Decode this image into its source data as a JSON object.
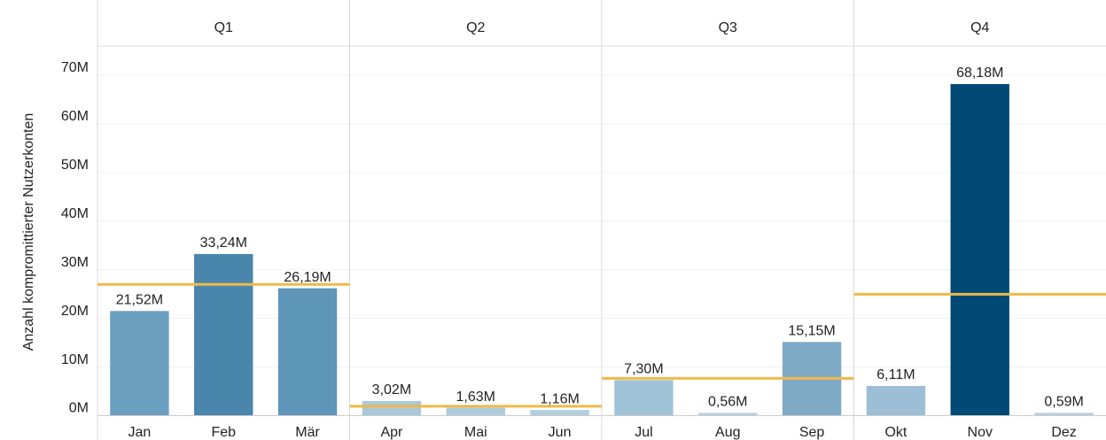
{
  "chart_data": {
    "type": "bar",
    "y_label": "Anzahl kompromittierter Nutzerkonten",
    "quarters": [
      "Q1",
      "Q2",
      "Q3",
      "Q4"
    ],
    "categories": [
      "Jan",
      "Feb",
      "Mär",
      "Apr",
      "Mai",
      "Jun",
      "Jul",
      "Aug",
      "Sep",
      "Okt",
      "Nov",
      "Dez"
    ],
    "values": [
      21.52,
      33.24,
      26.19,
      3.02,
      1.63,
      1.16,
      7.3,
      0.56,
      15.15,
      6.11,
      68.18,
      0.59
    ],
    "value_labels": [
      "21,52M",
      "33,24M",
      "26,19M",
      "3,02M",
      "1,63M",
      "1,16M",
      "7,30M",
      "0,56M",
      "15,15M",
      "6,11M",
      "68,18M",
      "0,59M"
    ],
    "colors": [
      "#6a9fc0",
      "#4a86ab",
      "#5e96b9",
      "#a9c8d9",
      "#aecbdc",
      "#b2cede",
      "#a0c2d6",
      "#b6d0df",
      "#7faac6",
      "#9cbfd5",
      "#004a75",
      "#b6d0df"
    ],
    "reference_lines": [
      26.98,
      1.94,
      7.67,
      24.96
    ],
    "reference_color": "#f0b94a",
    "ylim": [
      -1,
      76
    ],
    "yticks": [
      {
        "value": 0,
        "label": "0M"
      },
      {
        "value": 10,
        "label": "10M"
      },
      {
        "value": 20,
        "label": "20M"
      },
      {
        "value": 30,
        "label": "30M"
      },
      {
        "value": 40,
        "label": "40M"
      },
      {
        "value": 50,
        "label": "50M"
      },
      {
        "value": 60,
        "label": "60M"
      },
      {
        "value": 70,
        "label": "70M"
      }
    ],
    "grid": true
  }
}
